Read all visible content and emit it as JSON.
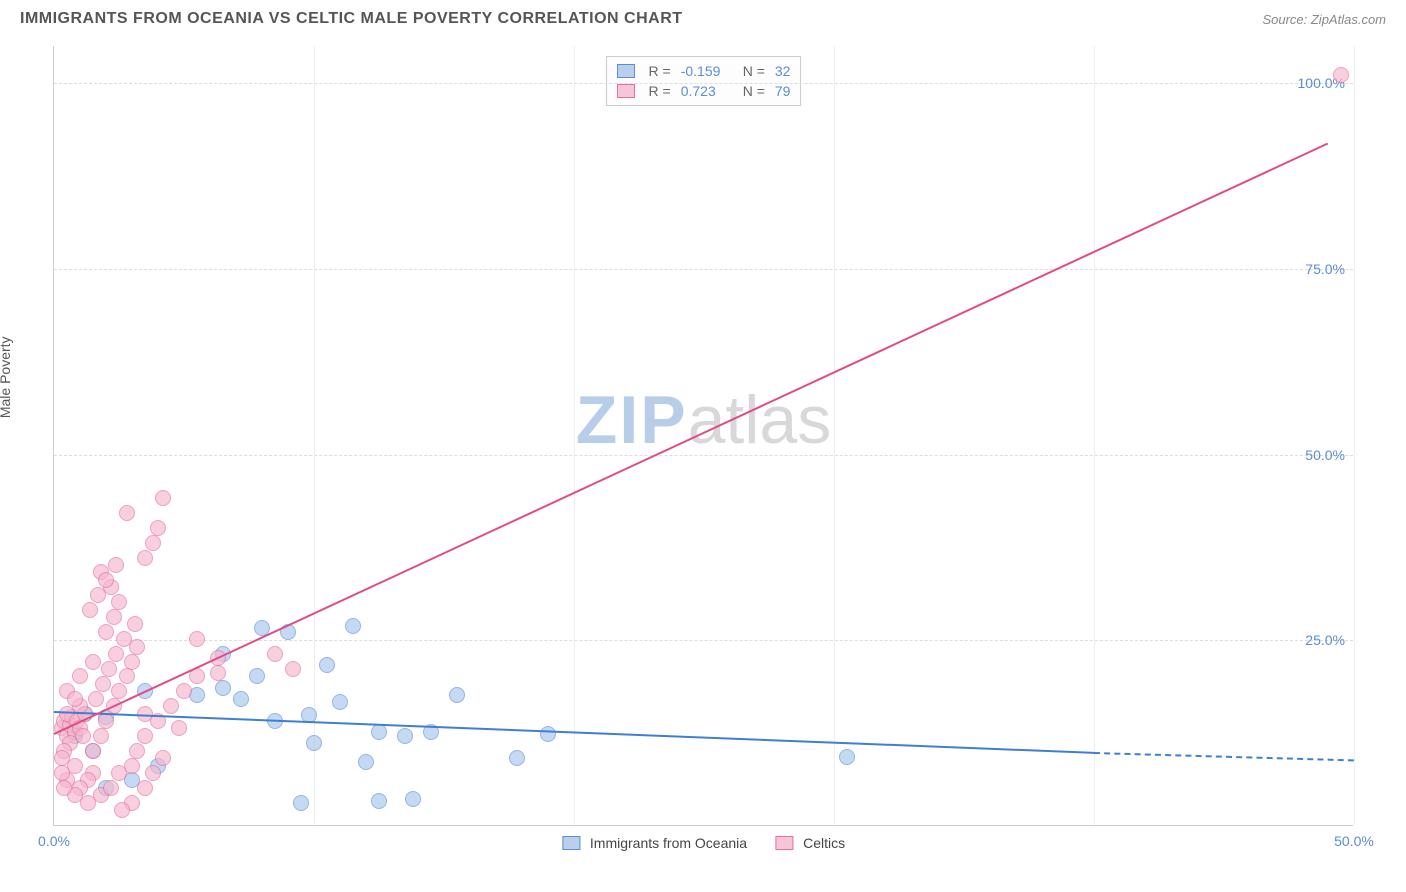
{
  "title": "IMMIGRANTS FROM OCEANIA VS CELTIC MALE POVERTY CORRELATION CHART",
  "source": "Source: ZipAtlas.com",
  "y_axis_label": "Male Poverty",
  "watermark": {
    "part1": "ZIP",
    "part2": "atlas"
  },
  "chart": {
    "type": "scatter",
    "xlim": [
      0,
      50
    ],
    "ylim": [
      0,
      105
    ],
    "xticks": [
      0,
      10,
      20,
      30,
      40,
      50
    ],
    "xtick_labels": [
      "0.0%",
      "",
      "",
      "",
      "",
      "50.0%"
    ],
    "yticks": [
      25,
      50,
      75,
      100
    ],
    "ytick_labels": [
      "25.0%",
      "50.0%",
      "75.0%",
      "100.0%"
    ],
    "grid_color": "#dddddd",
    "background_color": "#ffffff",
    "axis_color": "#cccccc",
    "marker_radius": 8,
    "marker_stroke_width": 1.5,
    "marker_fill_opacity": 0.35
  },
  "series": [
    {
      "name": "Immigrants from Oceania",
      "color_stroke": "#5b8dd6",
      "color_fill": "#a9c6ec",
      "legend_fill": "#b8d0ee",
      "R": "-0.159",
      "N": "32",
      "trend": {
        "x1": 0,
        "y1": 15.5,
        "x2": 40,
        "y2": 10,
        "dash_to_x": 50,
        "dash_to_y": 9,
        "color": "#3f7fd1",
        "width": 2
      },
      "points": [
        [
          13.8,
          3.5
        ],
        [
          12.5,
          3.2
        ],
        [
          9.5,
          3.0
        ],
        [
          7.2,
          17.0
        ],
        [
          8.0,
          26.5
        ],
        [
          9.0,
          26.0
        ],
        [
          11.5,
          26.8
        ],
        [
          5.5,
          17.5
        ],
        [
          6.5,
          18.5
        ],
        [
          12.0,
          8.5
        ],
        [
          12.5,
          12.5
        ],
        [
          10.0,
          11.0
        ],
        [
          17.8,
          9.0
        ],
        [
          13.5,
          12.0
        ],
        [
          14.5,
          12.5
        ],
        [
          7.8,
          20.0
        ],
        [
          6.5,
          23.0
        ],
        [
          3.5,
          18.0
        ],
        [
          2.0,
          14.5
        ],
        [
          1.2,
          15.0
        ],
        [
          0.8,
          12.0
        ],
        [
          1.5,
          10.0
        ],
        [
          4.0,
          8.0
        ],
        [
          3.0,
          6.0
        ],
        [
          2.0,
          5.0
        ],
        [
          30.5,
          9.2
        ],
        [
          19.0,
          12.2
        ],
        [
          15.5,
          17.5
        ],
        [
          11.0,
          16.5
        ],
        [
          10.5,
          21.5
        ],
        [
          8.5,
          14.0
        ],
        [
          9.8,
          14.8
        ]
      ]
    },
    {
      "name": "Celtics",
      "color_stroke": "#e76f9a",
      "color_fill": "#f4b6cf",
      "legend_fill": "#f6c6d8",
      "R": "0.723",
      "N": "79",
      "trend": {
        "x1": 0,
        "y1": 12.5,
        "x2": 49,
        "y2": 92,
        "color": "#e14b85",
        "width": 2
      },
      "points": [
        [
          0.3,
          13
        ],
        [
          0.4,
          14
        ],
        [
          0.5,
          12
        ],
        [
          0.6,
          13.5
        ],
        [
          0.7,
          14.5
        ],
        [
          0.5,
          15
        ],
        [
          0.8,
          12.5
        ],
        [
          0.9,
          14
        ],
        [
          1.0,
          13
        ],
        [
          1.1,
          12
        ],
        [
          1.2,
          15
        ],
        [
          1.0,
          16
        ],
        [
          0.6,
          11
        ],
        [
          0.4,
          10
        ],
        [
          0.3,
          9
        ],
        [
          0.8,
          8
        ],
        [
          1.5,
          7
        ],
        [
          1.3,
          6
        ],
        [
          1.0,
          5
        ],
        [
          1.8,
          4
        ],
        [
          2.2,
          5
        ],
        [
          2.5,
          7
        ],
        [
          1.5,
          10
        ],
        [
          1.8,
          12
        ],
        [
          2.0,
          14
        ],
        [
          2.3,
          16
        ],
        [
          2.5,
          18
        ],
        [
          2.8,
          20
        ],
        [
          3.0,
          22
        ],
        [
          3.2,
          24
        ],
        [
          2.0,
          26
        ],
        [
          2.3,
          28
        ],
        [
          2.5,
          30
        ],
        [
          2.2,
          32
        ],
        [
          1.8,
          34
        ],
        [
          3.5,
          36
        ],
        [
          3.8,
          38
        ],
        [
          4.0,
          40
        ],
        [
          2.8,
          42
        ],
        [
          4.2,
          44
        ],
        [
          1.0,
          20
        ],
        [
          1.5,
          22
        ],
        [
          0.5,
          18
        ],
        [
          0.8,
          17
        ],
        [
          3.0,
          8
        ],
        [
          3.2,
          10
        ],
        [
          3.5,
          12
        ],
        [
          4.0,
          14
        ],
        [
          4.5,
          16
        ],
        [
          5.0,
          18
        ],
        [
          5.5,
          20
        ],
        [
          6.3,
          20.5
        ],
        [
          6.3,
          22.5
        ],
        [
          8.5,
          23
        ],
        [
          9.2,
          21
        ],
        [
          5.5,
          25
        ],
        [
          4.8,
          13
        ],
        [
          4.2,
          9
        ],
        [
          3.8,
          7
        ],
        [
          3.5,
          5
        ],
        [
          3.0,
          3
        ],
        [
          2.6,
          2
        ],
        [
          1.3,
          3
        ],
        [
          0.8,
          4
        ],
        [
          0.5,
          6
        ],
        [
          0.3,
          7
        ],
        [
          0.4,
          5
        ],
        [
          1.6,
          17
        ],
        [
          1.9,
          19
        ],
        [
          2.1,
          21
        ],
        [
          2.4,
          23
        ],
        [
          2.7,
          25
        ],
        [
          3.1,
          27
        ],
        [
          1.4,
          29
        ],
        [
          1.7,
          31
        ],
        [
          2.0,
          33
        ],
        [
          2.4,
          35
        ],
        [
          3.5,
          15
        ],
        [
          49.5,
          101
        ]
      ]
    }
  ],
  "legend_top": {
    "r_label": "R =",
    "n_label": "N ="
  },
  "legend_bottom": [
    {
      "label": "Immigrants from Oceania",
      "series": 0
    },
    {
      "label": "Celtics",
      "series": 1
    }
  ]
}
